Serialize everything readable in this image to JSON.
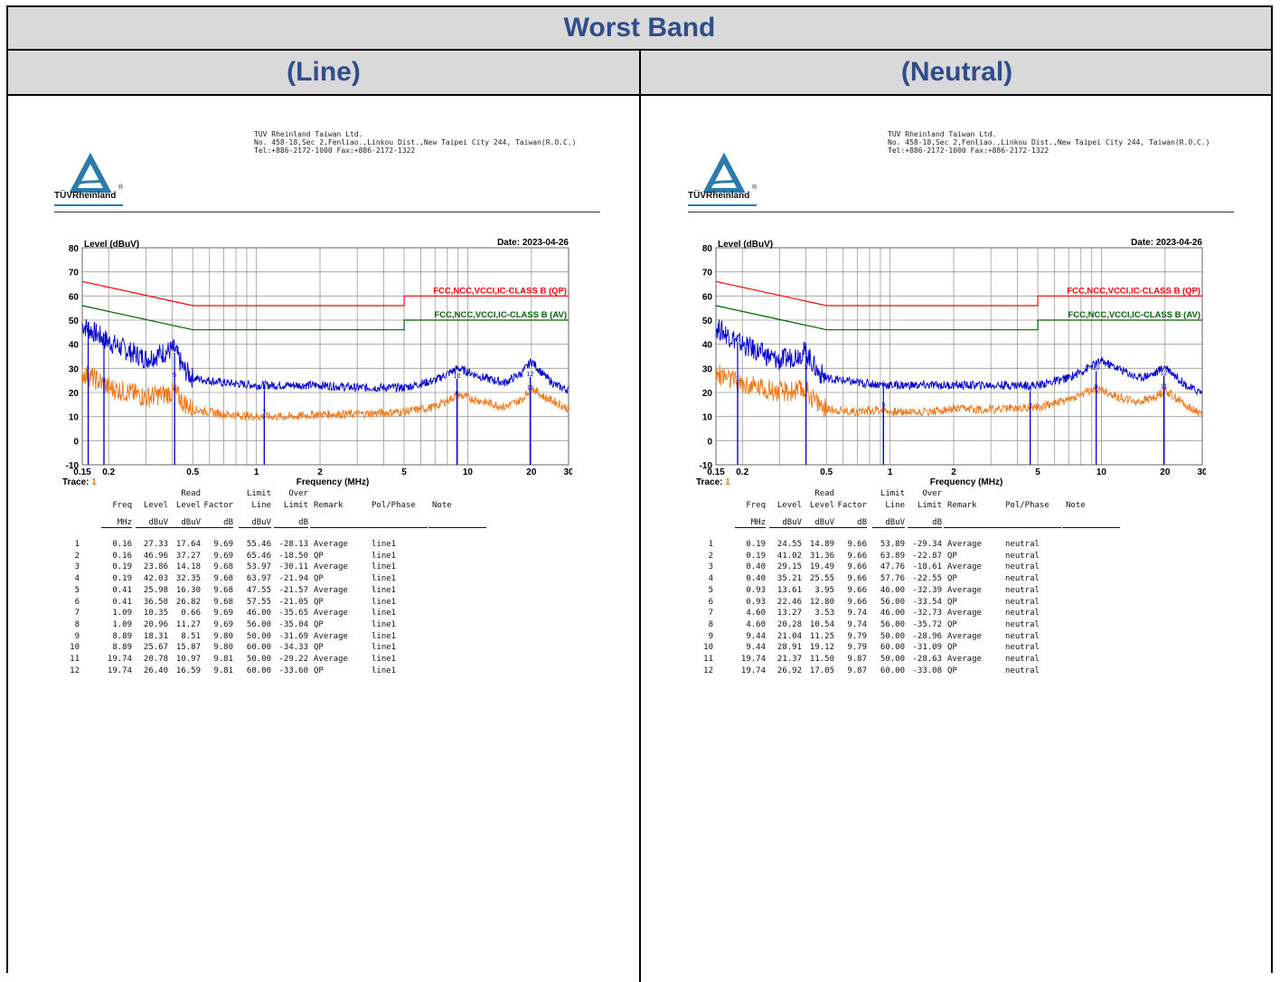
{
  "header": {
    "title": "Worst Band"
  },
  "columns": [
    {
      "label": "(Line)"
    },
    {
      "label": "(Neutral)"
    }
  ],
  "colors": {
    "header_text": "#2e4d8a",
    "header_bg": "#d9d9d9",
    "qp_limit": "#ff0000",
    "av_limit": "#006400",
    "peak_trace": "#0000cc",
    "avg_trace": "#f07818"
  },
  "panels": [
    {
      "company": [
        "TUV Rheinland Taiwan Ltd.",
        "No. 458-18,Sec 2,Fenliao.,Linkou Dist.,New Taipei City 244, Taiwan(R.O.C.)",
        "Tel:+886-2172-1000 Fax:+886-2172-1322"
      ],
      "logo": "TÜVRheinland",
      "logo_reg": "®",
      "trace_label": "Trace:",
      "trace_value": "1",
      "table": {
        "header1": [
          "",
          "",
          "",
          "Read",
          "",
          "Limit",
          "Over",
          "",
          "",
          ""
        ],
        "header2": [
          "",
          "Freq",
          "Level",
          "Level",
          "Factor",
          "Line",
          "Limit",
          "Remark",
          "Pol/Phase",
          "Note"
        ],
        "units": [
          "",
          "MHz",
          "dBuV",
          "dBuV",
          "dB",
          "dBuV",
          "dB",
          "",
          "",
          ""
        ],
        "rows": [
          [
            "1",
            "0.16",
            "27.33",
            "17.64",
            "9.69",
            "55.46",
            "-28.13",
            "Average",
            "line1"
          ],
          [
            "2",
            "0.16",
            "46.96",
            "37.27",
            "9.69",
            "65.46",
            "-18.50",
            "QP",
            "line1"
          ],
          [
            "3",
            "0.19",
            "23.86",
            "14.18",
            "9.68",
            "53.97",
            "-30.11",
            "Average",
            "line1"
          ],
          [
            "4",
            "0.19",
            "42.03",
            "32.35",
            "9.68",
            "63.97",
            "-21.94",
            "QP",
            "line1"
          ],
          [
            "5",
            "0.41",
            "25.98",
            "16.30",
            "9.68",
            "47.55",
            "-21.57",
            "Average",
            "line1"
          ],
          [
            "6",
            "0.41",
            "36.50",
            "26.82",
            "9.68",
            "57.55",
            "-21.05",
            "QP",
            "line1"
          ],
          [
            "7",
            "1.09",
            "10.35",
            "0.66",
            "9.69",
            "46.00",
            "-35.65",
            "Average",
            "line1"
          ],
          [
            "8",
            "1.09",
            "20.96",
            "11.27",
            "9.69",
            "56.00",
            "-35.04",
            "QP",
            "line1"
          ],
          [
            "9",
            "8.89",
            "18.31",
            "8.51",
            "9.80",
            "50.00",
            "-31.69",
            "Average",
            "line1"
          ],
          [
            "10",
            "8.89",
            "25.67",
            "15.87",
            "9.80",
            "60.00",
            "-34.33",
            "QP",
            "line1"
          ],
          [
            "11",
            "19.74",
            "20.78",
            "10.97",
            "9.81",
            "50.00",
            "-29.22",
            "Average",
            "line1"
          ],
          [
            "12",
            "19.74",
            "26.40",
            "16.59",
            "9.81",
            "60.00",
            "-33.60",
            "QP",
            "line1"
          ]
        ]
      }
    },
    {
      "company": [
        "TUV Rheinland Taiwan Ltd.",
        "No. 458-18,Sec 2,Fenliao.,Linkou Dist.,New Taipei City 244, Taiwan(R.O.C.)",
        "Tel:+886-2172-1000 Fax:+886-2172-1322"
      ],
      "logo": "TÜVRheinland",
      "logo_reg": "®",
      "trace_label": "Trace:",
      "trace_value": "1",
      "table": {
        "header1": [
          "",
          "",
          "",
          "Read",
          "",
          "Limit",
          "Over",
          "",
          "",
          ""
        ],
        "header2": [
          "",
          "Freq",
          "Level",
          "Level",
          "Factor",
          "Line",
          "Limit",
          "Remark",
          "Pol/Phase",
          "Note"
        ],
        "units": [
          "",
          "MHz",
          "dBuV",
          "dBuV",
          "dB",
          "dBuV",
          "dB",
          "",
          "",
          ""
        ],
        "rows": [
          [
            "1",
            "0.19",
            "24.55",
            "14.89",
            "9.66",
            "53.89",
            "-29.34",
            "Average",
            "neutral"
          ],
          [
            "2",
            "0.19",
            "41.02",
            "31.36",
            "9.66",
            "63.89",
            "-22.87",
            "QP",
            "neutral"
          ],
          [
            "3",
            "0.40",
            "29.15",
            "19.49",
            "9.66",
            "47.76",
            "-18.61",
            "Average",
            "neutral"
          ],
          [
            "4",
            "0.40",
            "35.21",
            "25.55",
            "9.66",
            "57.76",
            "-22.55",
            "QP",
            "neutral"
          ],
          [
            "5",
            "0.93",
            "13.61",
            "3.95",
            "9.66",
            "46.00",
            "-32.39",
            "Average",
            "neutral"
          ],
          [
            "6",
            "0.93",
            "22.46",
            "12.80",
            "9.66",
            "56.00",
            "-33.54",
            "QP",
            "neutral"
          ],
          [
            "7",
            "4.60",
            "13.27",
            "3.53",
            "9.74",
            "46.00",
            "-32.73",
            "Average",
            "neutral"
          ],
          [
            "8",
            "4.60",
            "20.28",
            "10.54",
            "9.74",
            "56.00",
            "-35.72",
            "QP",
            "neutral"
          ],
          [
            "9",
            "9.44",
            "21.04",
            "11.25",
            "9.79",
            "50.00",
            "-28.96",
            "Average",
            "neutral"
          ],
          [
            "10",
            "9.44",
            "28.91",
            "19.12",
            "9.79",
            "60.00",
            "-31.09",
            "QP",
            "neutral"
          ],
          [
            "11",
            "19.74",
            "21.37",
            "11.50",
            "9.87",
            "50.00",
            "-28.63",
            "Average",
            "neutral"
          ],
          [
            "12",
            "19.74",
            "26.92",
            "17.05",
            "9.87",
            "60.00",
            "-33.08",
            "QP",
            "neutral"
          ]
        ]
      }
    }
  ],
  "chart_data": [
    {
      "type": "line",
      "title": "",
      "ylabel": "Level (dBuV)",
      "xlabel": "Frequency (MHz)",
      "date": "Date: 2023-04-26",
      "x_scale": "log",
      "xlim": [
        0.15,
        30
      ],
      "ylim": [
        -10,
        80
      ],
      "x_ticks": [
        {
          "v": 0.15,
          "l": "0.15"
        },
        {
          "v": 0.2,
          "l": "0.2"
        },
        {
          "v": 0.5,
          "l": "0.5"
        },
        {
          "v": 1,
          "l": "1"
        },
        {
          "v": 2,
          "l": "2"
        },
        {
          "v": 5,
          "l": "5"
        },
        {
          "v": 10,
          "l": "10"
        },
        {
          "v": 20,
          "l": "20"
        },
        {
          "v": 30,
          "l": "30"
        }
      ],
      "y_ticks": [
        -10,
        0,
        10,
        20,
        30,
        40,
        50,
        60,
        70,
        80
      ],
      "grid": true,
      "limit_lines": [
        {
          "name": "FCC,NCC,VCCI,IC-CLASS B (QP)",
          "color": "#ff0000",
          "points": [
            [
              0.15,
              66
            ],
            [
              0.5,
              56
            ],
            [
              5,
              56
            ],
            [
              5,
              60
            ],
            [
              30,
              60
            ]
          ]
        },
        {
          "name": "FCC,NCC,VCCI,IC-CLASS B (AV)",
          "color": "#006400",
          "points": [
            [
              0.15,
              56
            ],
            [
              0.5,
              46
            ],
            [
              5,
              46
            ],
            [
              5,
              50
            ],
            [
              30,
              50
            ]
          ]
        }
      ],
      "series": [
        {
          "color": "#0000cc",
          "points": [
            [
              0.15,
              48
            ],
            [
              0.17,
              45
            ],
            [
              0.2,
              41
            ],
            [
              0.25,
              37
            ],
            [
              0.3,
              34
            ],
            [
              0.41,
              38
            ],
            [
              0.45,
              30
            ],
            [
              0.5,
              26
            ],
            [
              0.7,
              24
            ],
            [
              1,
              23
            ],
            [
              1.5,
              23
            ],
            [
              2,
              23
            ],
            [
              3,
              22
            ],
            [
              5,
              22
            ],
            [
              7,
              25
            ],
            [
              9,
              30
            ],
            [
              12,
              26
            ],
            [
              15,
              24
            ],
            [
              18,
              28
            ],
            [
              20,
              33
            ],
            [
              23,
              27
            ],
            [
              26,
              23
            ],
            [
              30,
              21
            ]
          ]
        },
        {
          "color": "#f07818",
          "points": [
            [
              0.15,
              28
            ],
            [
              0.17,
              26
            ],
            [
              0.2,
              22
            ],
            [
              0.25,
              20
            ],
            [
              0.3,
              18
            ],
            [
              0.41,
              20
            ],
            [
              0.45,
              16
            ],
            [
              0.5,
              13
            ],
            [
              0.7,
              11
            ],
            [
              1,
              10
            ],
            [
              1.5,
              10
            ],
            [
              2,
              11
            ],
            [
              3,
              11
            ],
            [
              5,
              12
            ],
            [
              7,
              14
            ],
            [
              9,
              19
            ],
            [
              12,
              16
            ],
            [
              15,
              14
            ],
            [
              18,
              17
            ],
            [
              20,
              22
            ],
            [
              23,
              18
            ],
            [
              26,
              16
            ],
            [
              30,
              13
            ]
          ]
        }
      ],
      "markers": [
        {
          "label": "1",
          "x": 0.16,
          "y": 27.33
        },
        {
          "label": "2",
          "x": 0.16,
          "y": 46.96
        },
        {
          "label": "3",
          "x": 0.19,
          "y": 23.86
        },
        {
          "label": "4",
          "x": 0.19,
          "y": 42.03
        },
        {
          "label": "5",
          "x": 0.41,
          "y": 25.98
        },
        {
          "label": "6",
          "x": 0.41,
          "y": 36.5
        },
        {
          "label": "7",
          "x": 1.09,
          "y": 10.35
        },
        {
          "label": "8",
          "x": 1.09,
          "y": 20.96
        },
        {
          "label": "9",
          "x": 8.89,
          "y": 18.31
        },
        {
          "label": "10",
          "x": 8.89,
          "y": 25.67
        },
        {
          "label": "11",
          "x": 19.74,
          "y": 20.78
        },
        {
          "label": "12",
          "x": 19.74,
          "y": 26.4
        }
      ]
    },
    {
      "type": "line",
      "title": "",
      "ylabel": "Level (dBuV)",
      "xlabel": "Frequency (MHz)",
      "date": "Date: 2023-04-26",
      "x_scale": "log",
      "xlim": [
        0.15,
        30
      ],
      "ylim": [
        -10,
        80
      ],
      "x_ticks": [
        {
          "v": 0.15,
          "l": "0.15"
        },
        {
          "v": 0.2,
          "l": "0.2"
        },
        {
          "v": 0.5,
          "l": "0.5"
        },
        {
          "v": 1,
          "l": "1"
        },
        {
          "v": 2,
          "l": "2"
        },
        {
          "v": 5,
          "l": "5"
        },
        {
          "v": 10,
          "l": "10"
        },
        {
          "v": 20,
          "l": "20"
        },
        {
          "v": 30,
          "l": "30"
        }
      ],
      "y_ticks": [
        -10,
        0,
        10,
        20,
        30,
        40,
        50,
        60,
        70,
        80
      ],
      "grid": true,
      "limit_lines": [
        {
          "name": "FCC,NCC,VCCI,IC-CLASS B (QP)",
          "color": "#ff0000",
          "points": [
            [
              0.15,
              66
            ],
            [
              0.5,
              56
            ],
            [
              5,
              56
            ],
            [
              5,
              60
            ],
            [
              30,
              60
            ]
          ]
        },
        {
          "name": "FCC,NCC,VCCI,IC-CLASS B (AV)",
          "color": "#006400",
          "points": [
            [
              0.15,
              56
            ],
            [
              0.5,
              46
            ],
            [
              5,
              46
            ],
            [
              5,
              50
            ],
            [
              30,
              50
            ]
          ]
        }
      ],
      "series": [
        {
          "color": "#0000cc",
          "points": [
            [
              0.15,
              47
            ],
            [
              0.17,
              44
            ],
            [
              0.2,
              40
            ],
            [
              0.25,
              36
            ],
            [
              0.3,
              33
            ],
            [
              0.4,
              37
            ],
            [
              0.45,
              29
            ],
            [
              0.5,
              26
            ],
            [
              0.7,
              24
            ],
            [
              1,
              23
            ],
            [
              1.5,
              23
            ],
            [
              2,
              23
            ],
            [
              3,
              23
            ],
            [
              5,
              23
            ],
            [
              7,
              26
            ],
            [
              9,
              31
            ],
            [
              10,
              33
            ],
            [
              12,
              30
            ],
            [
              15,
              26
            ],
            [
              18,
              28
            ],
            [
              20,
              31
            ],
            [
              23,
              26
            ],
            [
              26,
              22
            ],
            [
              30,
              20
            ]
          ]
        },
        {
          "color": "#f07818",
          "points": [
            [
              0.15,
              28
            ],
            [
              0.17,
              26
            ],
            [
              0.2,
              23
            ],
            [
              0.25,
              22
            ],
            [
              0.3,
              20
            ],
            [
              0.4,
              21
            ],
            [
              0.45,
              16
            ],
            [
              0.5,
              13
            ],
            [
              0.7,
              12
            ],
            [
              0.93,
              13
            ],
            [
              1,
              12
            ],
            [
              1.5,
              12
            ],
            [
              2,
              13
            ],
            [
              3,
              13
            ],
            [
              5,
              14
            ],
            [
              7,
              17
            ],
            [
              9,
              21
            ],
            [
              10,
              21
            ],
            [
              12,
              18
            ],
            [
              15,
              16
            ],
            [
              18,
              18
            ],
            [
              20,
              21
            ],
            [
              23,
              17
            ],
            [
              26,
              14
            ],
            [
              30,
              11
            ]
          ]
        }
      ],
      "markers": [
        {
          "label": "1",
          "x": 0.19,
          "y": 24.55
        },
        {
          "label": "2",
          "x": 0.19,
          "y": 41.02
        },
        {
          "label": "3",
          "x": 0.4,
          "y": 29.15
        },
        {
          "label": "4",
          "x": 0.4,
          "y": 35.21
        },
        {
          "label": "5",
          "x": 0.93,
          "y": 13.61
        },
        {
          "label": "6",
          "x": 0.93,
          "y": 22.46
        },
        {
          "label": "7",
          "x": 4.6,
          "y": 13.27
        },
        {
          "label": "8",
          "x": 4.6,
          "y": 20.28
        },
        {
          "label": "9",
          "x": 9.44,
          "y": 21.04
        },
        {
          "label": "10",
          "x": 9.44,
          "y": 28.91
        },
        {
          "label": "11",
          "x": 19.74,
          "y": 21.37
        },
        {
          "label": "12",
          "x": 19.74,
          "y": 26.92
        }
      ]
    }
  ]
}
